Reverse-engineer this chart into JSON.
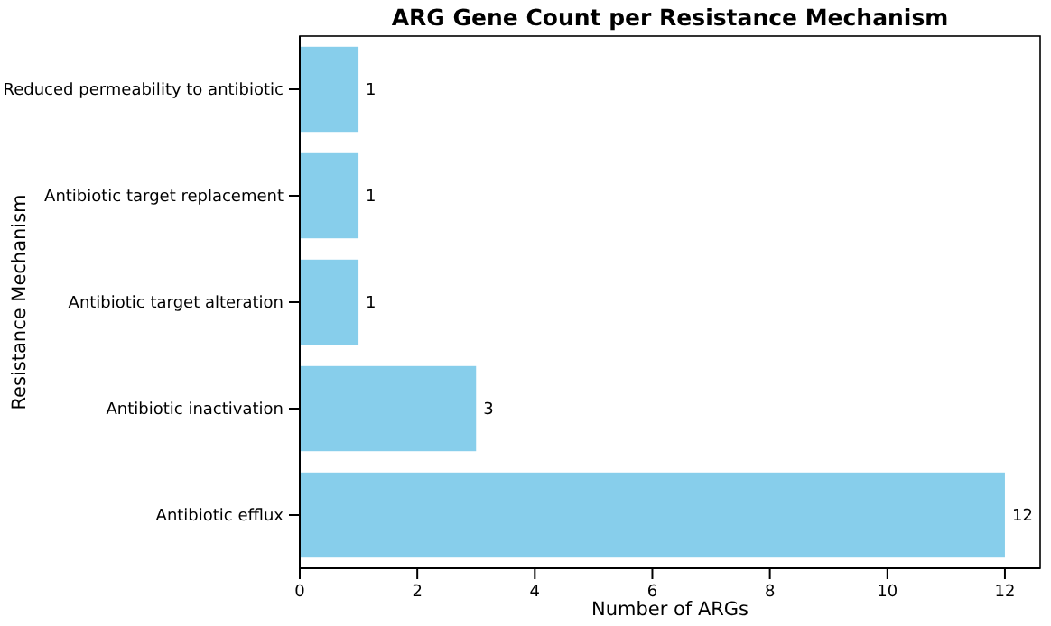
{
  "chart_data": {
    "type": "bar",
    "orientation": "horizontal",
    "title": "ARG Gene Count per Resistance Mechanism",
    "xlabel": "Number of ARGs",
    "ylabel": "Resistance Mechanism",
    "categories": [
      "Reduced permeability to antibiotic",
      "Antibiotic target replacement",
      "Antibiotic target alteration",
      "Antibiotic inactivation",
      "Antibiotic efflux"
    ],
    "values": [
      1,
      1,
      1,
      3,
      12
    ],
    "color": "#87ceeb",
    "data_labels": true,
    "xlim": [
      0,
      12.6
    ],
    "xticks": [
      0,
      2,
      4,
      6,
      8,
      10,
      12
    ]
  }
}
